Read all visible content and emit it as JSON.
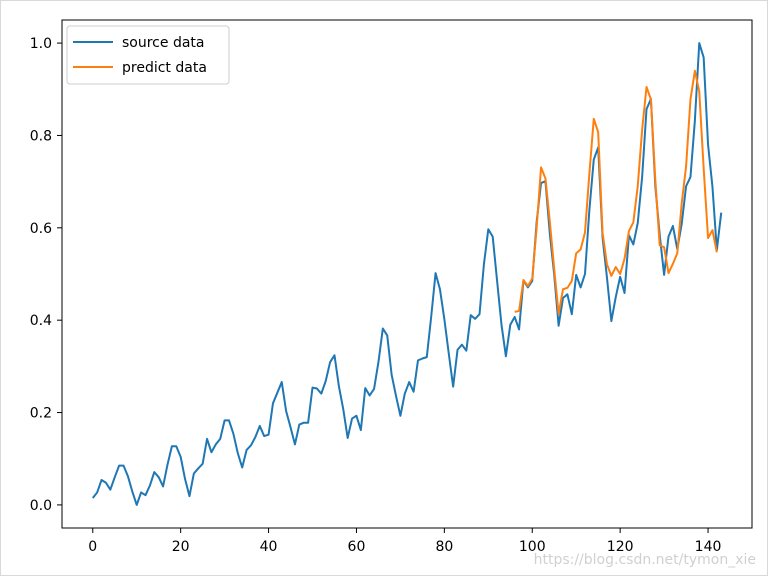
{
  "chart_data": {
    "type": "line",
    "title": "",
    "xlabel": "",
    "ylabel": "",
    "xlim": [
      -7,
      150
    ],
    "ylim": [
      -0.05,
      1.05
    ],
    "xticks": [
      0,
      20,
      40,
      60,
      80,
      100,
      120,
      140
    ],
    "yticks": [
      0.0,
      0.2,
      0.4,
      0.6,
      0.8,
      1.0
    ],
    "xtick_labels": [
      "0",
      "20",
      "40",
      "60",
      "80",
      "100",
      "120",
      "140"
    ],
    "ytick_labels": [
      "0.0",
      "0.2",
      "0.4",
      "0.6",
      "0.8",
      "1.0"
    ],
    "grid": false,
    "legend_position": "top-left",
    "series": [
      {
        "name": "source data",
        "color": "#1f77b4",
        "x_start": 0,
        "values": [
          0.015,
          0.027,
          0.054,
          0.048,
          0.033,
          0.06,
          0.085,
          0.085,
          0.062,
          0.029,
          0.0,
          0.027,
          0.021,
          0.042,
          0.071,
          0.06,
          0.04,
          0.087,
          0.127,
          0.127,
          0.104,
          0.056,
          0.019,
          0.068,
          0.079,
          0.089,
          0.143,
          0.114,
          0.131,
          0.143,
          0.183,
          0.183,
          0.154,
          0.112,
          0.081,
          0.119,
          0.129,
          0.147,
          0.171,
          0.149,
          0.152,
          0.22,
          0.243,
          0.266,
          0.203,
          0.168,
          0.131,
          0.174,
          0.178,
          0.178,
          0.254,
          0.252,
          0.241,
          0.268,
          0.309,
          0.324,
          0.257,
          0.207,
          0.145,
          0.187,
          0.193,
          0.162,
          0.253,
          0.237,
          0.251,
          0.309,
          0.382,
          0.367,
          0.282,
          0.236,
          0.193,
          0.241,
          0.266,
          0.245,
          0.313,
          0.317,
          0.32,
          0.407,
          0.502,
          0.467,
          0.402,
          0.328,
          0.256,
          0.336,
          0.347,
          0.334,
          0.411,
          0.403,
          0.413,
          0.521,
          0.597,
          0.581,
          0.485,
          0.39,
          0.322,
          0.39,
          0.407,
          0.38,
          0.486,
          0.471,
          0.485,
          0.613,
          0.697,
          0.701,
          0.587,
          0.498,
          0.388,
          0.448,
          0.456,
          0.413,
          0.498,
          0.471,
          0.5,
          0.639,
          0.748,
          0.774,
          0.579,
          0.492,
          0.398,
          0.45,
          0.494,
          0.459,
          0.584,
          0.564,
          0.61,
          0.71,
          0.857,
          0.879,
          0.69,
          0.585,
          0.498,
          0.581,
          0.604,
          0.554,
          0.608,
          0.69,
          0.71,
          0.832,
          1.0,
          0.969,
          0.78,
          0.689,
          0.552,
          0.633
        ]
      },
      {
        "name": "predict data",
        "color": "#ff7f0e",
        "x_start": 96,
        "values": [
          0.418,
          0.42,
          0.487,
          0.474,
          0.49,
          0.6,
          0.731,
          0.707,
          0.613,
          0.51,
          0.414,
          0.467,
          0.47,
          0.485,
          0.545,
          0.553,
          0.59,
          0.718,
          0.836,
          0.807,
          0.589,
          0.521,
          0.496,
          0.515,
          0.5,
          0.533,
          0.593,
          0.612,
          0.69,
          0.812,
          0.905,
          0.878,
          0.704,
          0.562,
          0.558,
          0.502,
          0.522,
          0.545,
          0.652,
          0.733,
          0.878,
          0.94,
          0.895,
          0.729,
          0.578,
          0.595,
          0.547
        ]
      }
    ]
  },
  "watermark": "https://blog.csdn.net/tymon_xie"
}
